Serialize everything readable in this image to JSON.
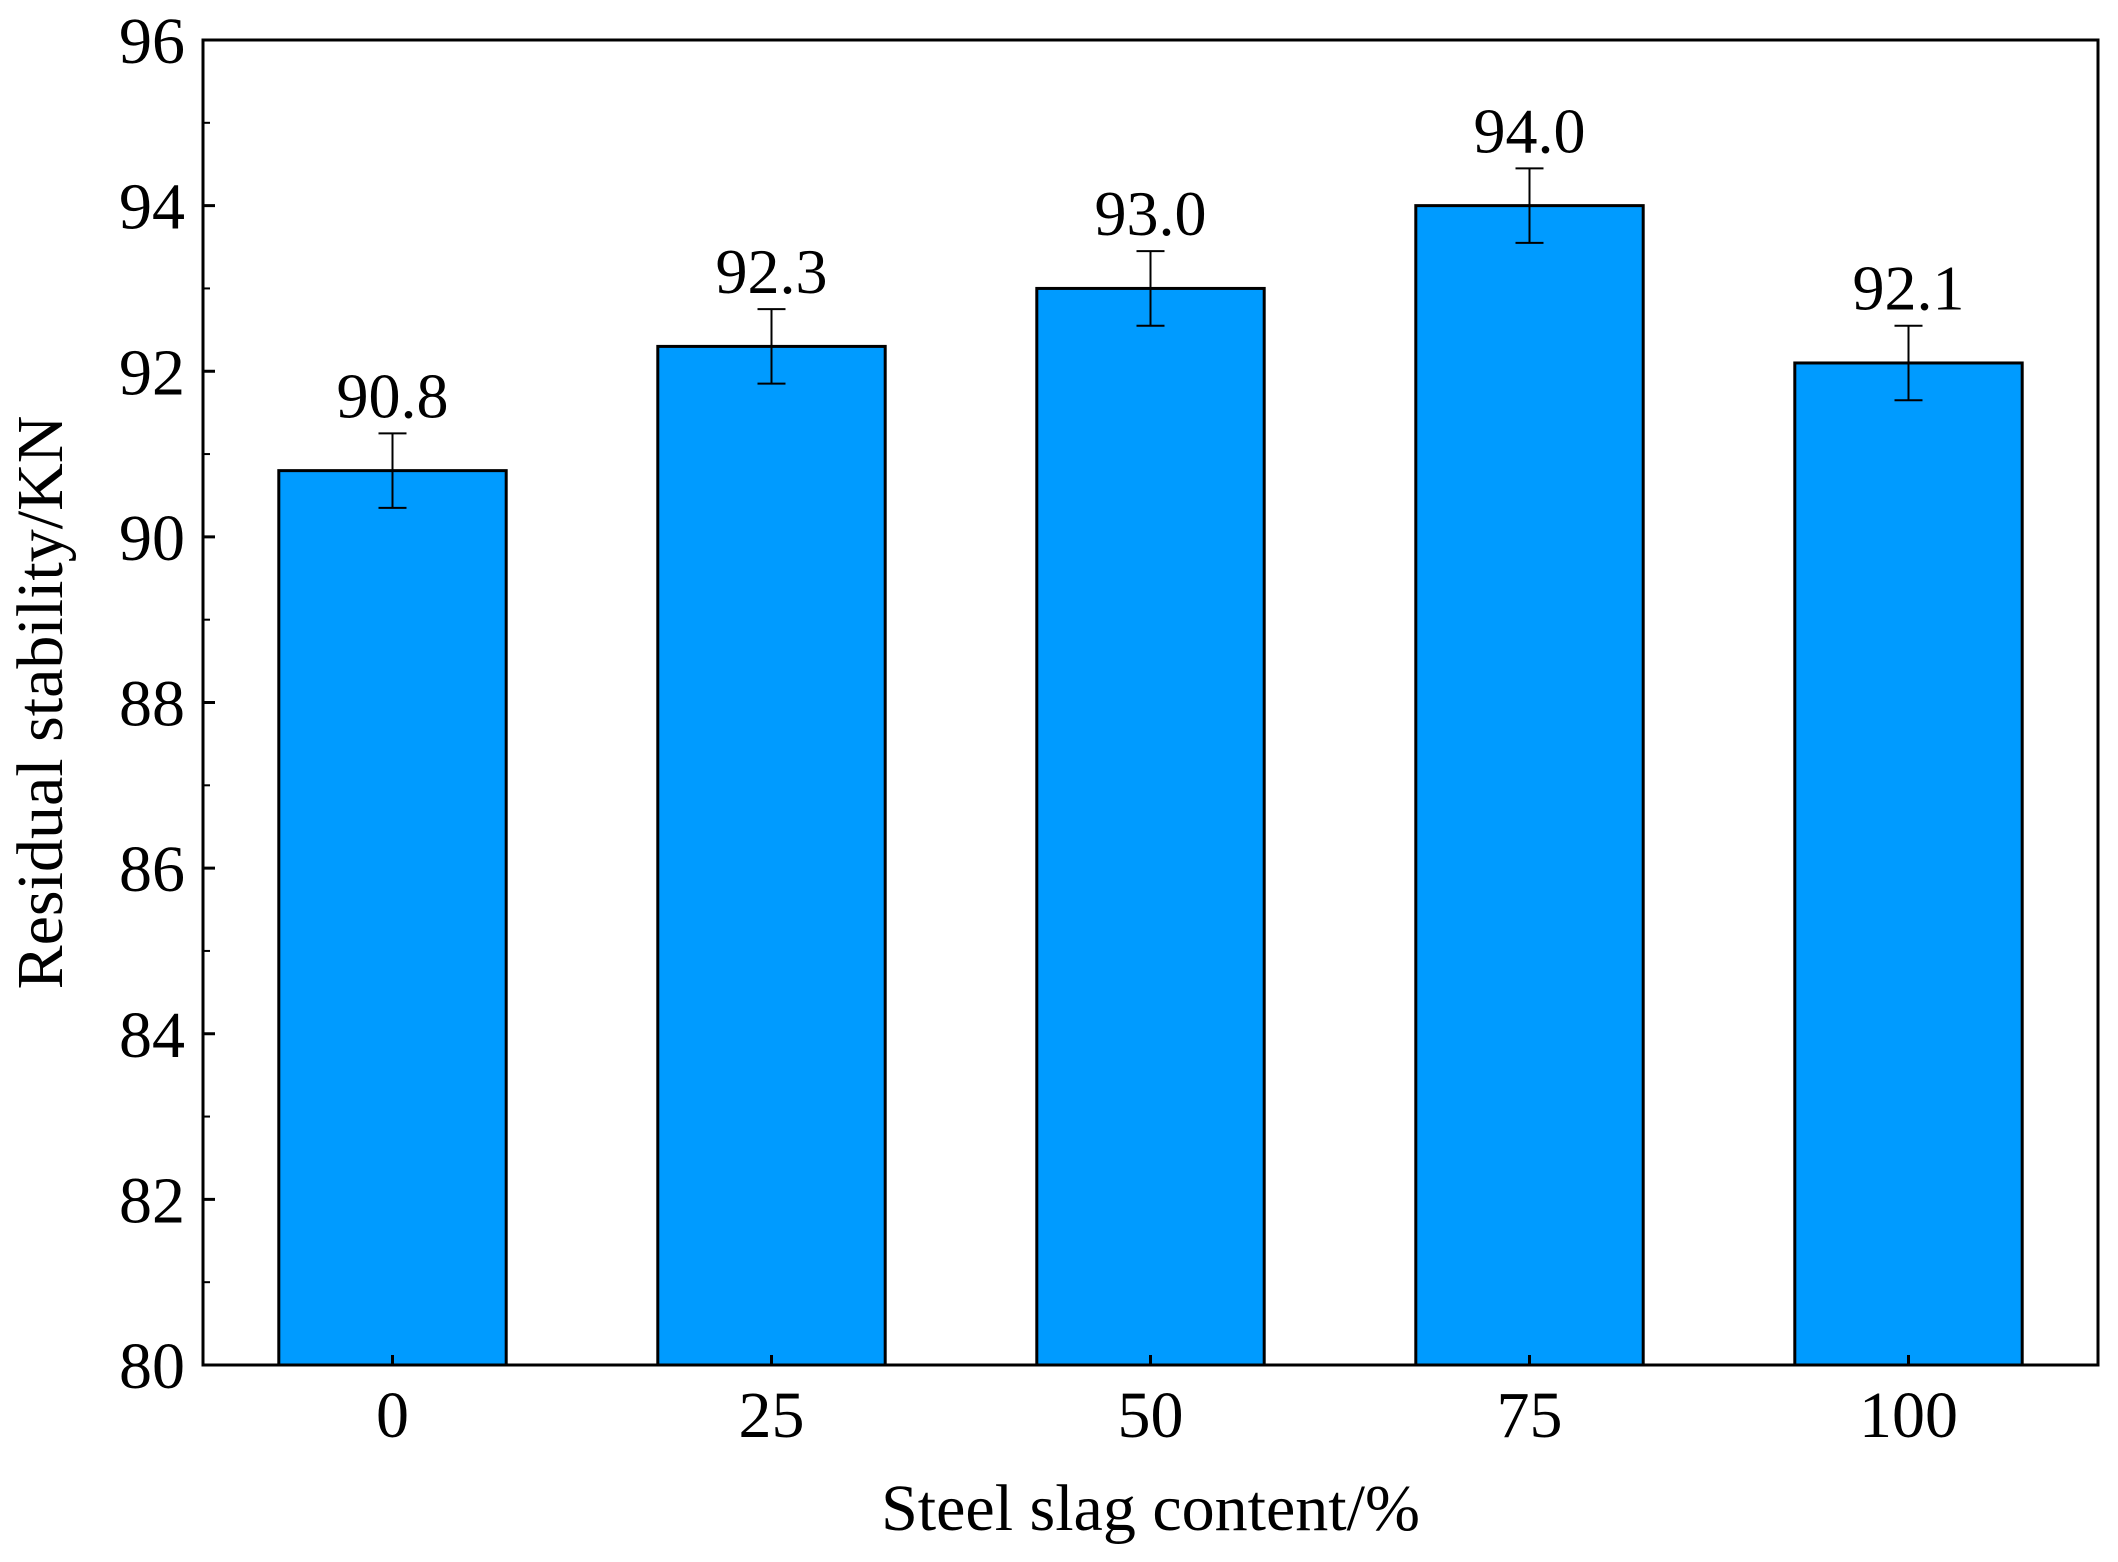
{
  "chart_data": {
    "type": "bar",
    "categories": [
      "0",
      "25",
      "50",
      "75",
      "100"
    ],
    "values": [
      90.8,
      92.3,
      93.0,
      94.0,
      92.1
    ],
    "value_labels": [
      "90.8",
      "92.3",
      "93.0",
      "94.0",
      "92.1"
    ],
    "error": [
      0.45,
      0.45,
      0.45,
      0.45,
      0.45
    ],
    "xlabel": "Steel slag content/%",
    "ylabel": "Residual stability/KN",
    "ylim": [
      80,
      96
    ],
    "yticks": [
      80,
      82,
      84,
      86,
      88,
      90,
      92,
      94,
      96
    ],
    "ytick_labels": [
      "80",
      "82",
      "84",
      "86",
      "88",
      "90",
      "92",
      "94",
      "96"
    ],
    "grid": false,
    "colors": {
      "bar": "#009BFF",
      "edge": "#000000"
    }
  }
}
